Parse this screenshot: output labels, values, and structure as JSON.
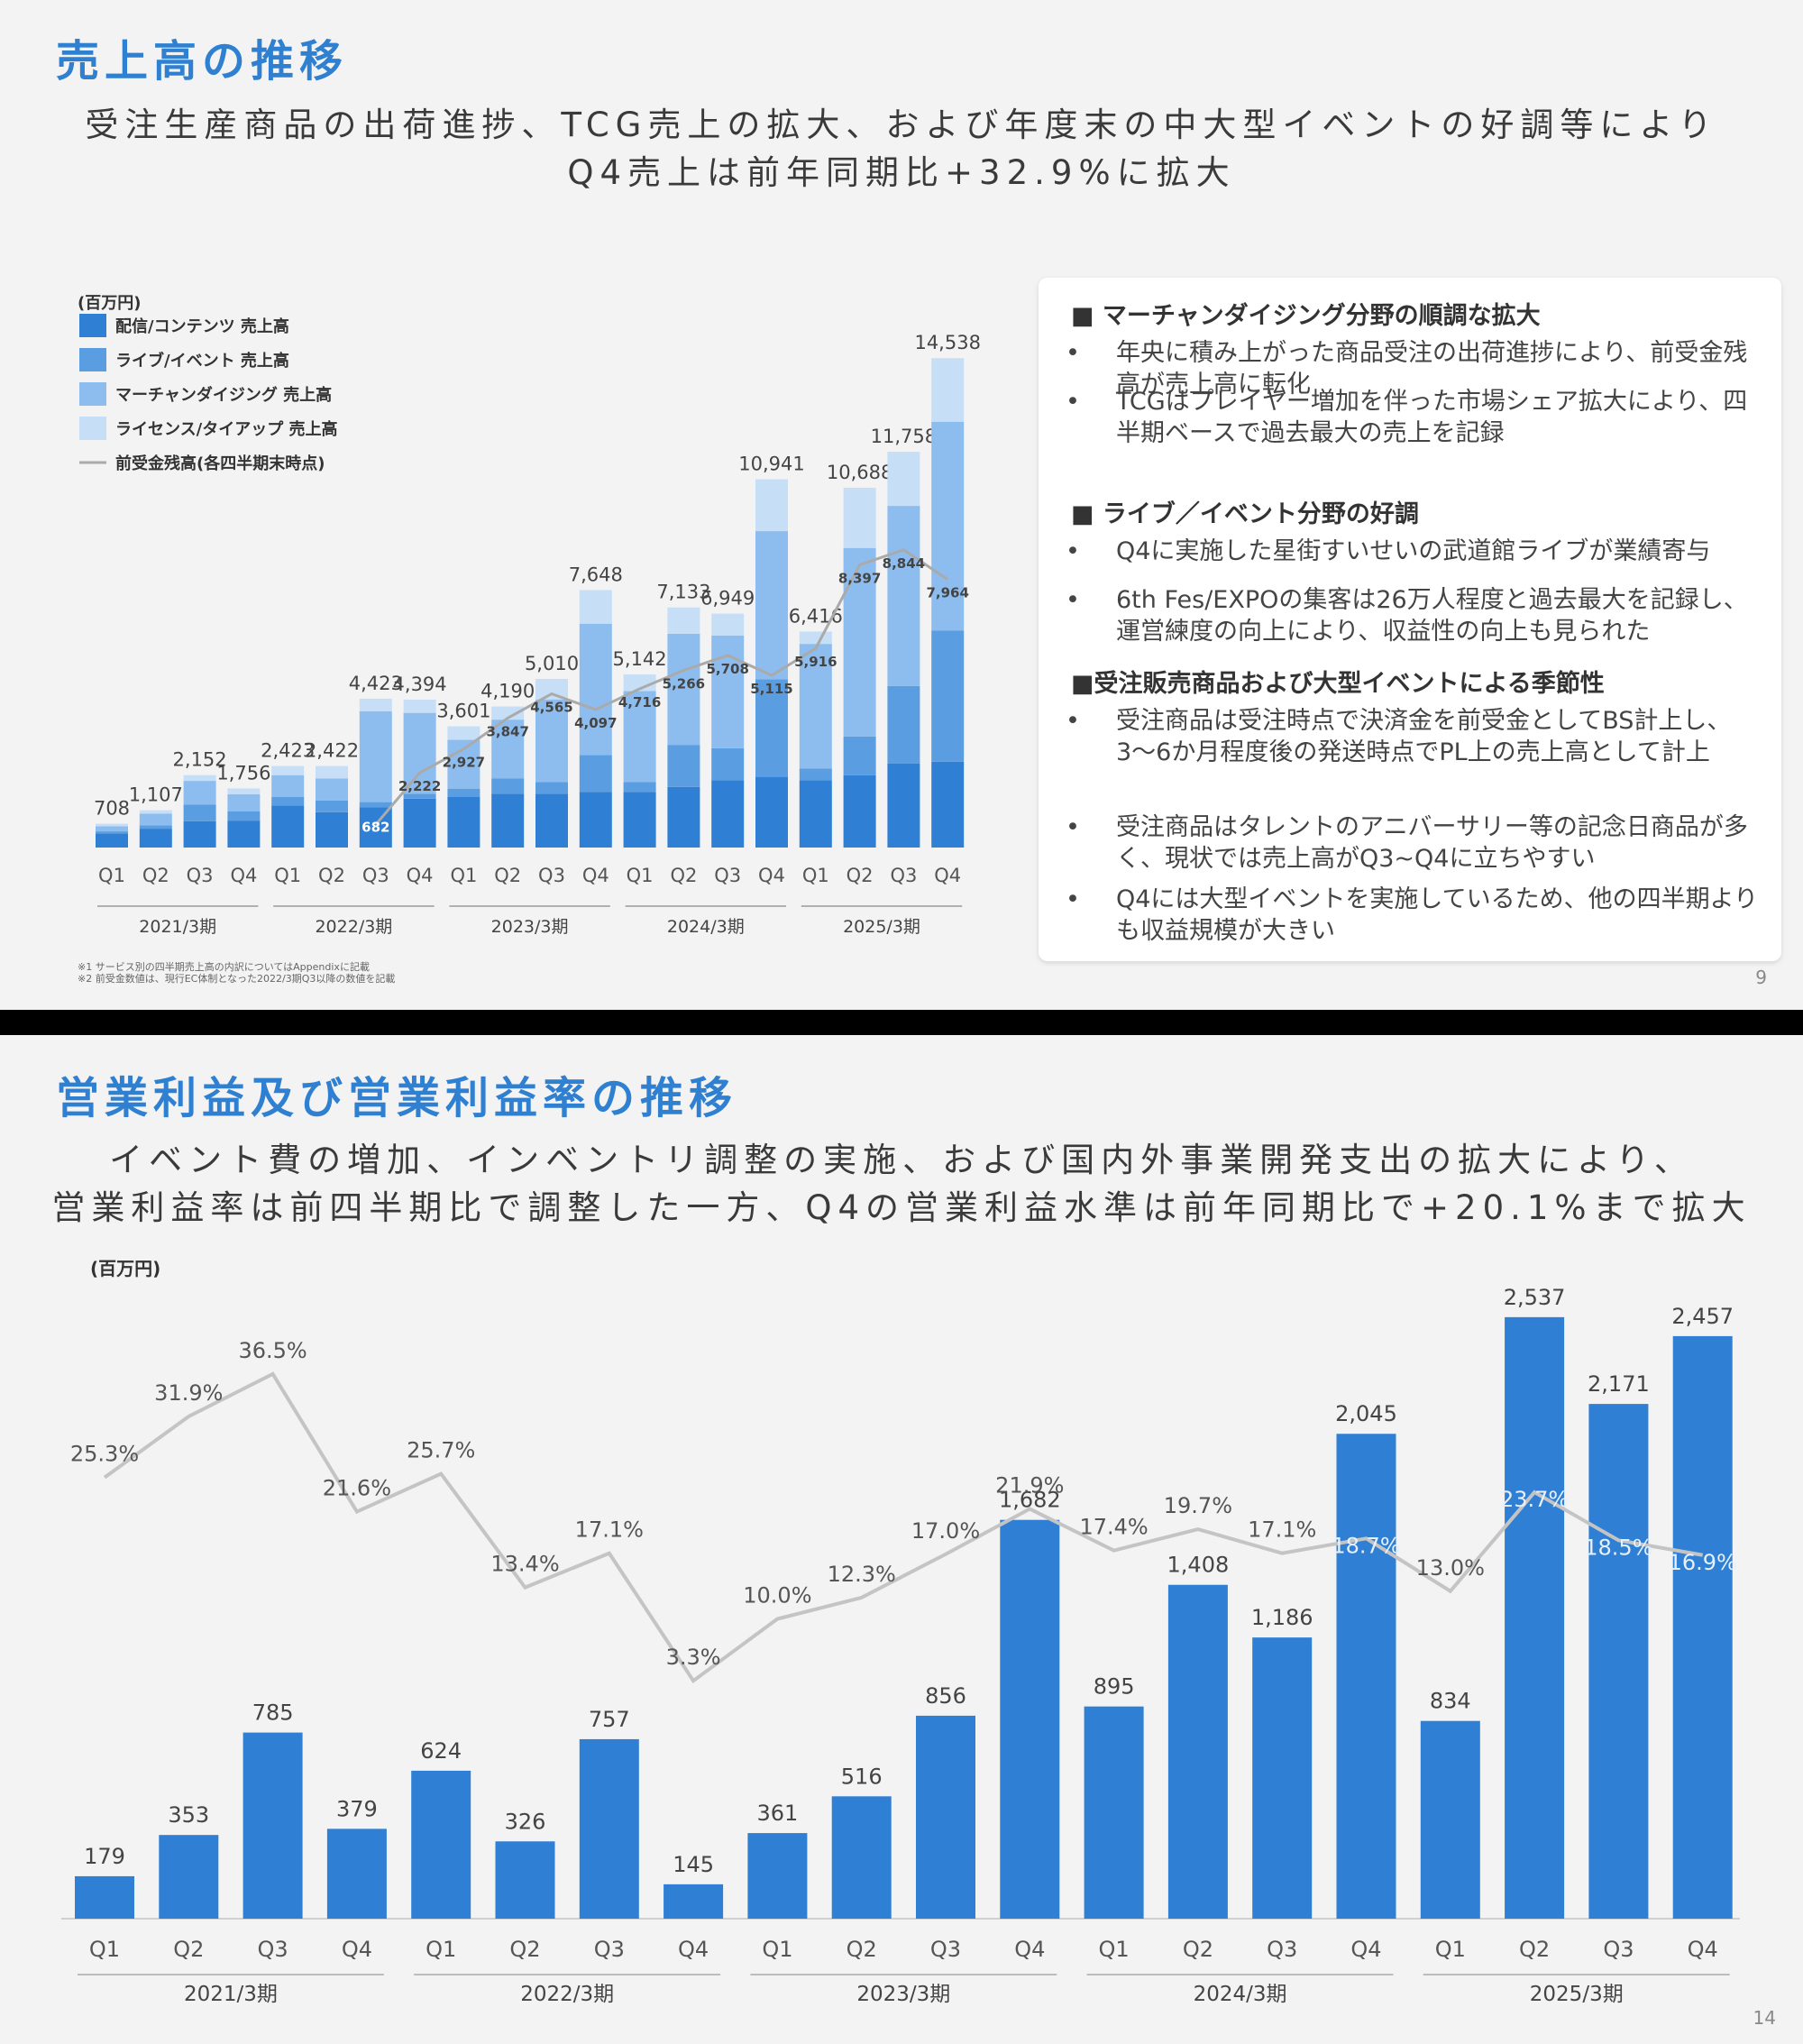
{
  "slide1": {
    "title": "売上高の推移",
    "subtitle_line1": "受注生産商品の出荷進捗、TCG売上の拡大、および年度末の中大型イベントの好調等により",
    "subtitle_line2": "Q4売上は前年同期比+32.9%に拡大",
    "unit": "(百万円)",
    "footnote1": "※1 サービス別の四半期売上高の内訳についてはAppendixに記載",
    "footnote2": "※2 前受金数値は、現行EC体制となった2022/3期Q3以降の数値を記載",
    "page_number": "9",
    "panel": {
      "sections": [
        {
          "heading": "■ マーチャンダイジング分野の順調な拡大",
          "bullets": [
            "年央に積み上がった商品受注の出荷進捗により、前受金残高が売上高に転化",
            "TCGはプレイヤー増加を伴った市場シェア拡大により、四半期ベースで過去最大の売上を記録"
          ]
        },
        {
          "heading": "■ ライブ／イベント分野の好調",
          "bullets": [
            "Q4に実施した星街すいせいの武道館ライブが業績寄与",
            "6th Fes/EXPOの集客は26万人程度と過去最大を記録し、運営練度の向上により、収益性の向上も見られた"
          ]
        },
        {
          "heading": "■受注販売商品および大型イベントによる季節性",
          "bullets": [
            "受注商品は受注時点で決済金を前受金としてBS計上し、3〜6か月程度後の発送時点でPL上の売上高として計上",
            "受注商品はタレントのアニバーサリー等の記念日商品が多く、現状では売上高がQ3~Q4に立ちやすい",
            "Q4には大型イベントを実施しているため、他の四半期よりも収益規模が大きい"
          ]
        }
      ],
      "bullet_char": "•"
    }
  },
  "slide2": {
    "title": "営業利益及び営業利益率の推移",
    "subtitle_line1": "イベント費の増加、インベントリ調整の実施、および国内外事業開発支出の拡大により、",
    "subtitle_line2": "営業利益率は前四半期比で調整した一方、Q4の営業利益水準は前年同期比で+20.1%まで拡大",
    "unit": "(百万円)",
    "page_number": "14"
  },
  "chart_data": [
    {
      "type": "bar",
      "stacked": true,
      "quarters": [
        "Q1",
        "Q2",
        "Q3",
        "Q4",
        "Q1",
        "Q2",
        "Q3",
        "Q4",
        "Q1",
        "Q2",
        "Q3",
        "Q4",
        "Q1",
        "Q2",
        "Q3",
        "Q4",
        "Q1",
        "Q2",
        "Q3",
        "Q4"
      ],
      "fiscal_years": [
        "2021/3期",
        "2022/3期",
        "2023/3期",
        "2024/3期",
        "2025/3期"
      ],
      "totals": [
        708,
        1107,
        2152,
        1756,
        2423,
        2422,
        4423,
        4394,
        3601,
        4190,
        5010,
        7648,
        5142,
        7133,
        6949,
        10941,
        6416,
        10688,
        11758,
        14538
      ],
      "total_labels": [
        "708",
        "1,107",
        "2,152",
        "1,756",
        "2,423",
        "2,422",
        "4,423",
        "4,394",
        "3,601",
        "4,190",
        "5,010",
        "7,648",
        "5,142",
        "7,133",
        "6,949",
        "10,941",
        "6,416",
        "10,688",
        "11,758",
        "14,538"
      ],
      "series": [
        {
          "name": "配信/コンテンツ 売上高",
          "color": "#2f7fd4",
          "values": [
            420,
            560,
            780,
            800,
            1250,
            1050,
            1200,
            1450,
            1500,
            1600,
            1600,
            1650,
            1650,
            1800,
            2000,
            2100,
            2000,
            2150,
            2500,
            2550
          ]
        },
        {
          "name": "ライブ/イベント 売上高",
          "color": "#5a9de0",
          "values": [
            60,
            100,
            500,
            280,
            250,
            350,
            150,
            150,
            250,
            450,
            350,
            1100,
            300,
            1250,
            950,
            2900,
            350,
            1150,
            2300,
            3900
          ]
        },
        {
          "name": "マーチャンダイジング 売上高",
          "color": "#8dbdee",
          "values": [
            150,
            350,
            700,
            500,
            650,
            650,
            2700,
            2400,
            1450,
            1750,
            2450,
            3900,
            2700,
            3300,
            3350,
            4400,
            3700,
            5600,
            5350,
            6200
          ]
        },
        {
          "name": "ライセンス/タイアップ 売上高",
          "color": "#c6dff7",
          "values": [
            78,
            97,
            172,
            176,
            273,
            372,
            373,
            394,
            401,
            390,
            610,
            998,
            492,
            783,
            649,
            1541,
            366,
            1788,
            1608,
            1888
          ]
        }
      ],
      "line": {
        "name": "前受金残高(各四半期末時点)",
        "color": "#aaaaaa",
        "start_index": 6,
        "values": [
          682,
          2222,
          2927,
          3847,
          4565,
          4097,
          4716,
          5266,
          5708,
          5115,
          5916,
          8397,
          8844,
          7964
        ],
        "labels": [
          "682",
          "2,222",
          "2,927",
          "3,847",
          "4,565",
          "4,097",
          "4,716",
          "5,266",
          "5,708",
          "5,115",
          "5,916",
          "8,397",
          "8,844",
          "7,964"
        ]
      },
      "ylim": [
        0,
        15000
      ]
    },
    {
      "type": "bar",
      "quarters": [
        "Q1",
        "Q2",
        "Q3",
        "Q4",
        "Q1",
        "Q2",
        "Q3",
        "Q4",
        "Q1",
        "Q2",
        "Q3",
        "Q4",
        "Q1",
        "Q2",
        "Q3",
        "Q4",
        "Q1",
        "Q2",
        "Q3",
        "Q4"
      ],
      "fiscal_years": [
        "2021/3期",
        "2022/3期",
        "2023/3期",
        "2024/3期",
        "2025/3期"
      ],
      "bar_color": "#2f7fd4",
      "values": [
        179,
        353,
        785,
        379,
        624,
        326,
        757,
        145,
        361,
        516,
        856,
        1682,
        895,
        1408,
        1186,
        2045,
        834,
        2537,
        2171,
        2457
      ],
      "value_labels": [
        "179",
        "353",
        "785",
        "379",
        "624",
        "326",
        "757",
        "145",
        "361",
        "516",
        "856",
        "1,682",
        "895",
        "1,408",
        "1,186",
        "2,045",
        "834",
        "2,537",
        "2,171",
        "2,457"
      ],
      "line": {
        "color": "#c4c4c4",
        "values": [
          25.3,
          31.9,
          36.5,
          21.6,
          25.7,
          13.4,
          17.1,
          3.3,
          10.0,
          12.3,
          17.0,
          21.9,
          17.4,
          19.7,
          17.1,
          18.7,
          13.0,
          23.7,
          18.5,
          16.9
        ],
        "labels": [
          "25.3%",
          "31.9%",
          "36.5%",
          "21.6%",
          "25.7%",
          "13.4%",
          "17.1%",
          "3.3%",
          "10.0%",
          "12.3%",
          "17.0%",
          "21.9%",
          "17.4%",
          "19.7%",
          "17.1%",
          "18.7%",
          "13.0%",
          "23.7%",
          "18.5%",
          "16.9%"
        ]
      },
      "ylim": [
        0,
        2700
      ]
    }
  ]
}
